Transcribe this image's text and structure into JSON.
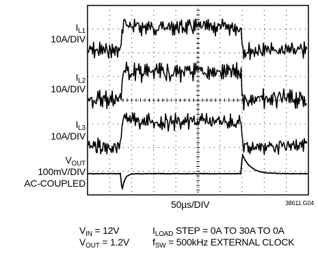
{
  "chart_data": {
    "type": "line",
    "x_unit": "µs",
    "x_scale_label": "50µs/DIV",
    "x_divisions": 10,
    "y_divisions": 8,
    "grid": true,
    "step": {
      "rise_x": 0,
      "fall_x": 177
    },
    "series": [
      {
        "id": "IL1",
        "label_main": "I",
        "label_sub": "L1",
        "scale": "10A/DIV",
        "low_level": 10,
        "high_level": 20,
        "unit": "A",
        "overshoot": 3,
        "ripple_peak_to_peak": 2.5
      },
      {
        "id": "IL2",
        "label_main": "I",
        "label_sub": "L2",
        "scale": "10A/DIV",
        "low_level": 0,
        "high_level": 10,
        "unit": "A",
        "overshoot": 1.5,
        "ripple_peak_to_peak": 2.5
      },
      {
        "id": "IL3",
        "label_main": "I",
        "label_sub": "L3",
        "scale": "10A/DIV",
        "low_level": -10,
        "high_level": 0,
        "unit": "A",
        "overshoot": 1.5,
        "ripple_peak_to_peak": 2.5
      },
      {
        "id": "VOUT",
        "label_main": "V",
        "label_sub": "OUT",
        "scale": "100mV/DIV",
        "coupling": "AC-COUPLED",
        "unit": "mV",
        "step_undershoot": -70,
        "release_overshoot": 80
      }
    ]
  },
  "footer": {
    "vin_main": "V",
    "vin_sub": "IN",
    "vin_value": " = 12V",
    "vout_main": "V",
    "vout_sub": "OUT",
    "vout_value": " = 1.2V",
    "iload_main": "I",
    "iload_sub": "LOAD",
    "iload_value": " STEP = 0A TO 30A TO 0A",
    "fsw_main": "f",
    "fsw_sub": "SW",
    "fsw_value": " = 500kHz EXTERNAL CLOCK",
    "figure_id": "38611 G04"
  },
  "colors": {
    "trace": "#000000",
    "grid": "#000000",
    "background": "#ffffff"
  }
}
